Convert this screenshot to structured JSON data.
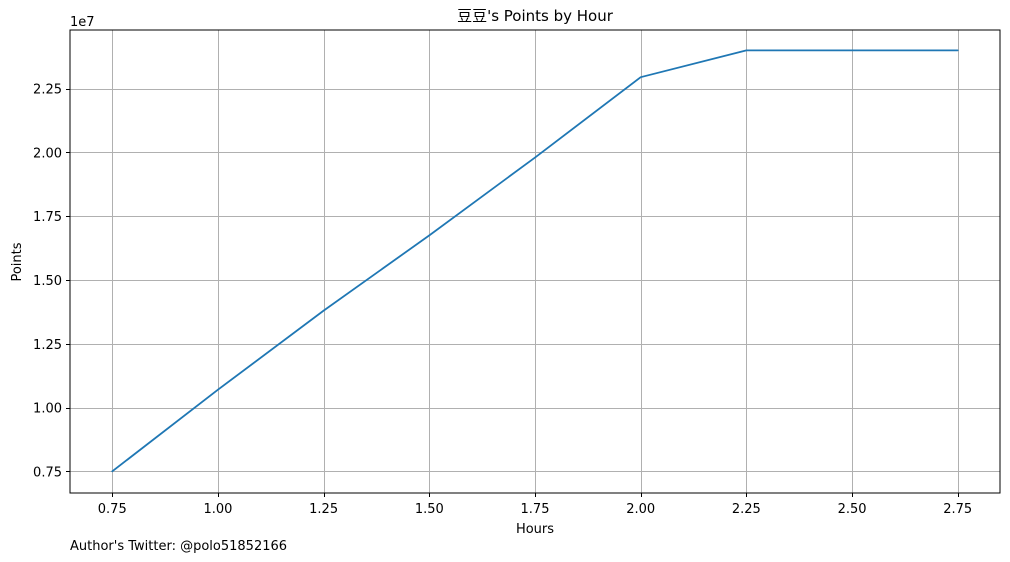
{
  "chart_data": {
    "type": "line",
    "title": "豆豆's Points by Hour",
    "xlabel": "Hours",
    "ylabel": "Points",
    "y_offset_label": "1e7",
    "footer": "Author's Twitter: @polo51852166",
    "xlim": [
      0.65,
      2.85
    ],
    "ylim": [
      6650000,
      24800000
    ],
    "x_ticks": [
      0.75,
      1.0,
      1.25,
      1.5,
      1.75,
      2.0,
      2.25,
      2.5,
      2.75
    ],
    "x_tick_labels": [
      "0.75",
      "1.00",
      "1.25",
      "1.50",
      "1.75",
      "2.00",
      "2.25",
      "2.50",
      "2.75"
    ],
    "y_ticks": [
      7500000,
      10000000,
      12500000,
      15000000,
      17500000,
      20000000,
      22500000
    ],
    "y_tick_labels": [
      "0.75",
      "1.00",
      "1.25",
      "1.50",
      "1.75",
      "2.00",
      "2.25"
    ],
    "grid": true,
    "colors": {
      "line": "#1f77b4"
    },
    "series": [
      {
        "x": [
          0.75,
          1.0,
          1.25,
          1.5,
          1.75,
          2.0,
          2.25,
          2.5,
          2.75
        ],
        "values": [
          7500000,
          10700000,
          13800000,
          16750000,
          19800000,
          22950000,
          24000000,
          24000000,
          24000000
        ]
      }
    ]
  }
}
